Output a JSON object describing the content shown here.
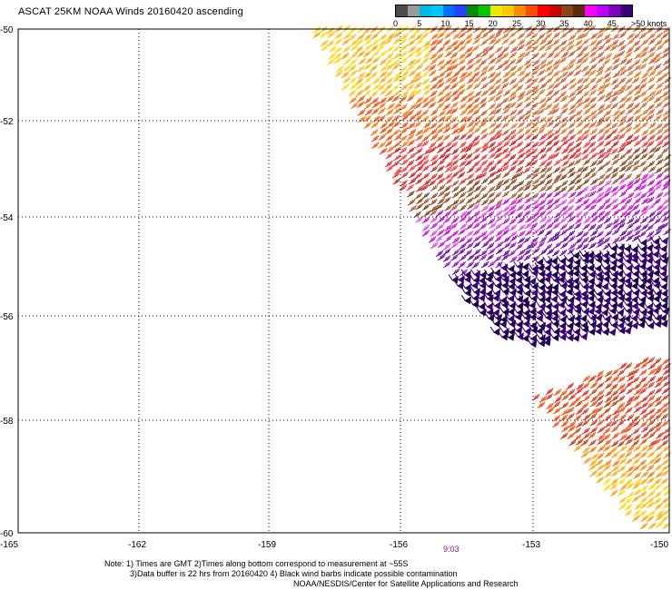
{
  "title": "ASCAT 25KM NOAA Winds 20160420 ascending",
  "legend": {
    "colors": [
      "#4d4d4d",
      "#9a9a9a",
      "#00b7e8",
      "#00c8ff",
      "#0070ff",
      "#2b40ff",
      "#008c00",
      "#00c800",
      "#e8e800",
      "#ffc800",
      "#ff8c00",
      "#ff4b00",
      "#ff0000",
      "#cc0000",
      "#8b4513",
      "#5a2d0c",
      "#ff00ff",
      "#c000ff",
      "#8000c0",
      "#3c0078"
    ],
    "labels": [
      "0",
      "5",
      "10",
      "15",
      "20",
      "25",
      "30",
      "35",
      "40",
      "45",
      ">50 knots"
    ]
  },
  "axes": {
    "lat_labels": [
      "-50",
      "-52",
      "-54",
      "-56",
      "-58",
      "-60"
    ],
    "lon_labels": [
      "-165",
      "-162",
      "-159",
      "-156",
      "-153",
      "-150"
    ]
  },
  "time_label": "9:03",
  "notes": [
    "Note: 1) Times are GMT 2)Times along bottom correspond to measurement at ~55S",
    "3)Data buffer is 22 hrs from 20160420 4) Black wind barbs indicate possible contamination",
    "NOAA/NESDIS/Center for Satellite Applications and Research"
  ]
}
